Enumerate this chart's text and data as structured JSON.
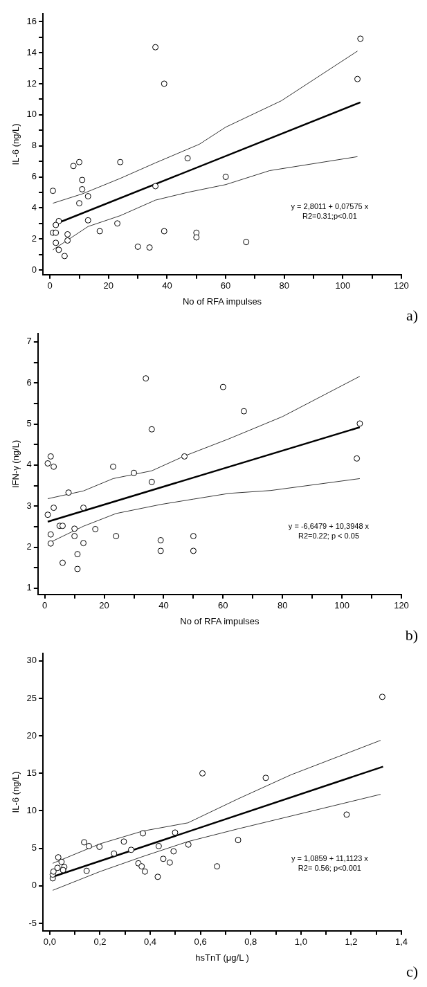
{
  "chart_data": [
    {
      "type": "scatter",
      "xlabel": "No of RFA impulses",
      "ylabel": "IL-6 (ng/L)",
      "xlim": [
        -2.4,
        120
      ],
      "ylim": [
        -0.3,
        16.5
      ],
      "xticks": [
        0,
        {
          "value": 10,
          "label": null
        },
        20,
        {
          "value": 30,
          "label": null
        },
        40,
        {
          "value": 50,
          "label": null
        },
        60,
        {
          "value": 70,
          "label": null
        },
        80,
        {
          "value": 90,
          "label": null
        },
        100,
        {
          "value": 110,
          "label": null
        },
        120
      ],
      "yticks": [
        0,
        {
          "value": 1,
          "label": null
        },
        2,
        {
          "value": 3,
          "label": null
        },
        4,
        {
          "value": 5,
          "label": null
        },
        6,
        {
          "value": 7,
          "label": null
        },
        8,
        {
          "value": 9,
          "label": null
        },
        10,
        {
          "value": 11,
          "label": null
        },
        12,
        {
          "value": 13,
          "label": null
        },
        14,
        {
          "value": 15,
          "label": null
        },
        16
      ],
      "grid": false,
      "legend": false,
      "annotations": [
        "y = 2,8011 + 0,07575 x",
        "R2=0.31;p<0.01",
        "a)"
      ],
      "series": [
        {
          "marker": "circle",
          "color": "#000000",
          "x": [
            1,
            8,
            10,
            11,
            11,
            10,
            13,
            13,
            3,
            2,
            1,
            2,
            2,
            3,
            5,
            6,
            6,
            17,
            24,
            23,
            30,
            34,
            36,
            36,
            39,
            39,
            47,
            50,
            50,
            60,
            67,
            106,
            105
          ],
          "values": [
            5.1,
            6.7,
            6.95,
            5.8,
            5.2,
            4.3,
            4.75,
            3.2,
            3.15,
            2.9,
            2.4,
            2.4,
            1.75,
            1.3,
            0.9,
            2.3,
            1.9,
            2.5,
            6.95,
            3.0,
            1.5,
            1.45,
            14.35,
            5.4,
            12.0,
            2.5,
            7.2,
            2.4,
            2.1,
            6.0,
            1.8,
            14.9,
            12.3
          ]
        },
        {
          "type": "line",
          "marker": "none",
          "color": "#000000",
          "x": [
            1,
            106
          ],
          "values": [
            2.9,
            10.8
          ]
        },
        {
          "type": "line",
          "marker": "none",
          "color": "#000000",
          "x": [
            1,
            11,
            24,
            36,
            51,
            60,
            79,
            105
          ],
          "values": [
            4.3,
            4.9,
            5.9,
            6.9,
            8.1,
            9.2,
            10.9,
            14.1
          ]
        },
        {
          "type": "line",
          "marker": "none",
          "color": "#000000",
          "x": [
            1,
            13,
            24,
            36,
            47,
            60,
            75,
            105
          ],
          "values": [
            1.3,
            2.8,
            3.5,
            4.5,
            5.0,
            5.5,
            6.4,
            7.3
          ]
        }
      ]
    },
    {
      "type": "scatter",
      "xlabel": "No of RFA impulses",
      "ylabel": "IFN-γ (ng/L)",
      "xlim": [
        -2.3,
        120
      ],
      "ylim": [
        0.85,
        7.2
      ],
      "xticks": [
        0,
        {
          "value": 10,
          "label": null
        },
        20,
        {
          "value": 30,
          "label": null
        },
        40,
        {
          "value": 50,
          "label": null
        },
        60,
        {
          "value": 70,
          "label": null
        },
        80,
        {
          "value": 90,
          "label": null
        },
        100,
        {
          "value": 110,
          "label": null
        },
        120
      ],
      "yticks": [
        1,
        {
          "value": 1.5,
          "label": null
        },
        2,
        {
          "value": 2.5,
          "label": null
        },
        3,
        {
          "value": 3.5,
          "label": null
        },
        4,
        {
          "value": 4.5,
          "label": null
        },
        5,
        {
          "value": 5.5,
          "label": null
        },
        6,
        {
          "value": 6.5,
          "label": null
        },
        7
      ],
      "grid": false,
      "legend": false,
      "annotations": [
        "y = -6,6479 + 10,3948 x",
        "R2=0.22; p < 0.05",
        "b)"
      ],
      "series": [
        {
          "marker": "circle",
          "color": "#000000",
          "x": [
            1,
            2,
            3,
            8,
            1,
            3,
            2,
            2,
            5,
            6,
            6,
            10,
            10,
            13,
            13,
            11,
            11,
            17,
            23,
            24,
            30,
            34,
            36,
            36,
            39,
            39,
            47,
            50,
            50,
            60,
            67,
            106,
            105
          ],
          "values": [
            4.04,
            4.21,
            3.96,
            3.33,
            2.79,
            2.96,
            2.31,
            2.09,
            2.52,
            2.52,
            1.62,
            2.45,
            2.27,
            2.96,
            2.1,
            1.83,
            1.47,
            2.44,
            3.96,
            2.27,
            3.81,
            6.11,
            4.87,
            3.59,
            2.17,
            1.91,
            4.21,
            2.27,
            1.91,
            5.9,
            5.31,
            5.01,
            4.16
          ]
        },
        {
          "type": "line",
          "marker": "none",
          "color": "#000000",
          "x": [
            1,
            106
          ],
          "values": [
            2.62,
            4.92
          ]
        },
        {
          "type": "line",
          "marker": "none",
          "color": "#000000",
          "x": [
            1,
            13,
            23,
            36,
            47,
            62,
            80,
            106
          ],
          "values": [
            3.18,
            3.37,
            3.67,
            3.86,
            4.22,
            4.64,
            5.18,
            6.16
          ]
        },
        {
          "type": "line",
          "marker": "none",
          "color": "#000000",
          "x": [
            1,
            13,
            24,
            39,
            50,
            62,
            76,
            106
          ],
          "values": [
            2.09,
            2.51,
            2.82,
            3.04,
            3.17,
            3.31,
            3.38,
            3.67
          ]
        }
      ]
    },
    {
      "type": "scatter",
      "xlabel": "hsTnT (μg/L )",
      "ylabel": "IL-6 (ng/L)",
      "xlim": [
        -0.027,
        1.4
      ],
      "ylim": [
        -6,
        31
      ],
      "xticks": [
        {
          "value": 0,
          "label": "0,0"
        },
        {
          "value": 0.1,
          "label": null
        },
        {
          "value": 0.2,
          "label": "0,2"
        },
        {
          "value": 0.3,
          "label": null
        },
        {
          "value": 0.4,
          "label": "0,4"
        },
        {
          "value": 0.5,
          "label": null
        },
        {
          "value": 0.6,
          "label": "0,6"
        },
        {
          "value": 0.7,
          "label": null
        },
        {
          "value": 0.8,
          "label": "0,8"
        },
        {
          "value": 0.9,
          "label": null
        },
        {
          "value": 1.0,
          "label": "1,0"
        },
        {
          "value": 1.1,
          "label": null
        },
        {
          "value": 1.2,
          "label": "1,2"
        },
        {
          "value": 1.3,
          "label": null
        },
        {
          "value": 1.4,
          "label": "1,4"
        }
      ],
      "yticks": [
        -5,
        0,
        5,
        10,
        15,
        20,
        25,
        30
      ],
      "grid": false,
      "legend": false,
      "annotations": [
        "y = 1,0859 + 11,1123 x",
        "R2= 0.56; p<0.001",
        "c)"
      ],
      "series": [
        {
          "marker": "circle",
          "color": "#000000",
          "x": [
            0.012,
            0.012,
            0.015,
            0.031,
            0.034,
            0.047,
            0.058,
            0.053,
            0.137,
            0.156,
            0.147,
            0.198,
            0.256,
            0.295,
            0.324,
            0.371,
            0.353,
            0.366,
            0.379,
            0.43,
            0.434,
            0.452,
            0.478,
            0.493,
            0.499,
            0.552,
            0.608,
            0.666,
            0.75,
            0.86,
            1.182,
            1.324
          ],
          "values": [
            1.0,
            1.5,
            1.9,
            2.4,
            3.8,
            3.2,
            2.5,
            2.1,
            5.8,
            5.3,
            2.0,
            5.2,
            4.3,
            5.9,
            4.8,
            7.0,
            3.0,
            2.6,
            1.9,
            1.2,
            5.3,
            3.6,
            3.1,
            4.6,
            7.1,
            5.5,
            15.0,
            2.6,
            6.1,
            14.4,
            9.5,
            25.2
          ]
        },
        {
          "type": "line",
          "marker": "none",
          "color": "#000000",
          "x": [
            0.012,
            1.327
          ],
          "values": [
            1.2,
            15.9
          ]
        },
        {
          "type": "line",
          "marker": "none",
          "color": "#000000",
          "x": [
            0.012,
            0.2,
            0.37,
            0.55,
            0.75,
            0.96,
            1.317
          ],
          "values": [
            3.0,
            5.6,
            7.3,
            8.4,
            11.6,
            14.8,
            19.4
          ]
        },
        {
          "type": "line",
          "marker": "none",
          "color": "#000000",
          "x": [
            0.012,
            0.2,
            0.37,
            0.55,
            0.75,
            0.96,
            1.317
          ],
          "values": [
            -0.6,
            1.9,
            3.9,
            5.9,
            7.6,
            9.3,
            12.2
          ]
        }
      ]
    }
  ]
}
